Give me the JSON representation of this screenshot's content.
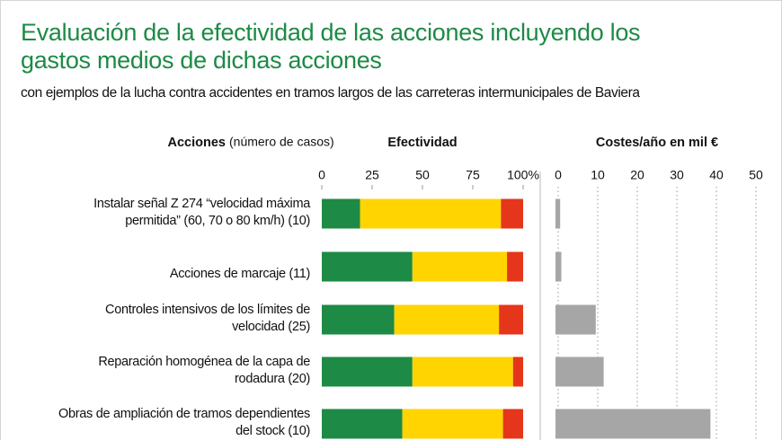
{
  "chart_data": [
    {
      "type": "bar",
      "orientation": "horizontal",
      "stacked": true,
      "title": "Evaluación de la efectividad de las acciones incluyendo los gastos medios de dichas acciones",
      "subtitle": "con ejemplos de la lucha contra accidentes en tramos largos de las carreteras intermunicipales de Baviera",
      "category_header": "Acciones",
      "category_header_note": "(número de casos)",
      "axis_title": "Efectividad",
      "categories": [
        "Instalar señal Z 274 “velocidad máxima permitida” (60, 70 o 80 km/h) (10)",
        "Acciones de marcaje (11)",
        "Controles intensivos de los límites de velocidad (25)",
        "Reparación homogénea de la capa de rodadura (20)",
        "Obras de ampliación de tramos dependientes del stock (10)"
      ],
      "series": [
        {
          "color": "#1d8a45",
          "values": [
            19,
            45,
            36,
            45,
            40
          ]
        },
        {
          "color": "#ffd400",
          "values": [
            70,
            47,
            52,
            50,
            50
          ]
        },
        {
          "color": "#e5361b",
          "values": [
            11,
            8,
            12,
            5,
            10
          ]
        }
      ],
      "xlim": [
        0,
        100
      ],
      "xticks": [
        0,
        25,
        50,
        75,
        {
          "value": 100,
          "label": "100%"
        }
      ]
    },
    {
      "type": "bar",
      "orientation": "horizontal",
      "axis_title": "Costes/año en mil €",
      "values": [
        0.5,
        0.8,
        9.5,
        11.5,
        38.5
      ],
      "color": "#a6a6a6",
      "xlim": [
        0,
        50
      ],
      "xticks": [
        0,
        10,
        20,
        30,
        40,
        50
      ],
      "grid": true
    }
  ]
}
